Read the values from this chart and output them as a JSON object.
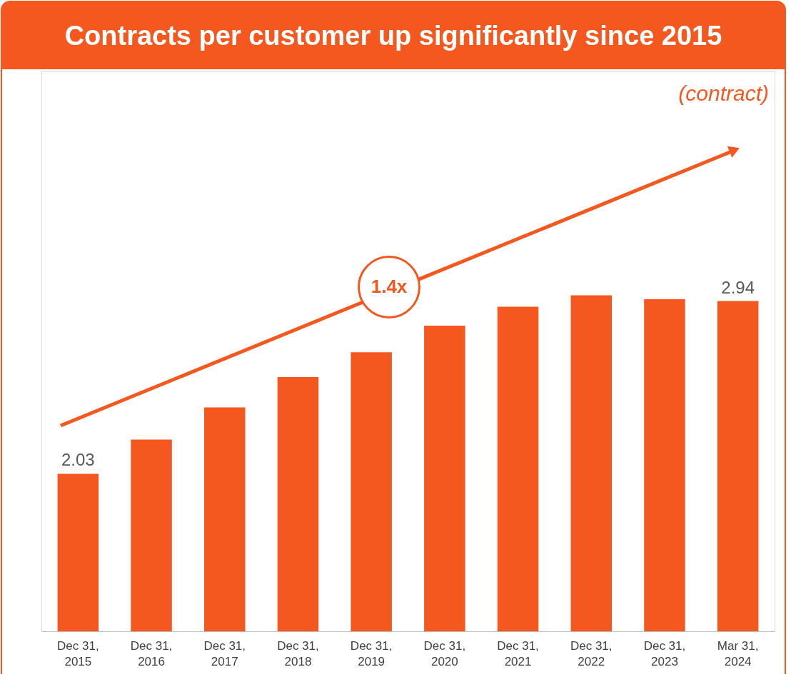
{
  "chart_data": {
    "type": "bar",
    "title": "Contracts per customer up significantly since 2015",
    "categories": [
      "Dec 31, 2015",
      "Dec 31, 2016",
      "Dec 31, 2017",
      "Dec 31, 2018",
      "Dec 31, 2019",
      "Dec 31, 2020",
      "Dec 31, 2021",
      "Dec 31, 2022",
      "Dec 31, 2023",
      "Mar 31, 2024"
    ],
    "values": [
      2.03,
      2.21,
      2.38,
      2.54,
      2.67,
      2.81,
      2.91,
      2.97,
      2.95,
      2.94
    ],
    "value_labels": [
      "2.03",
      null,
      null,
      null,
      null,
      null,
      null,
      null,
      null,
      "2.94"
    ],
    "color": "#f4581f",
    "ylim": [
      1.2,
      4.15
    ],
    "annotations": [
      "(contract)",
      "1.4x"
    ],
    "grid": false
  }
}
